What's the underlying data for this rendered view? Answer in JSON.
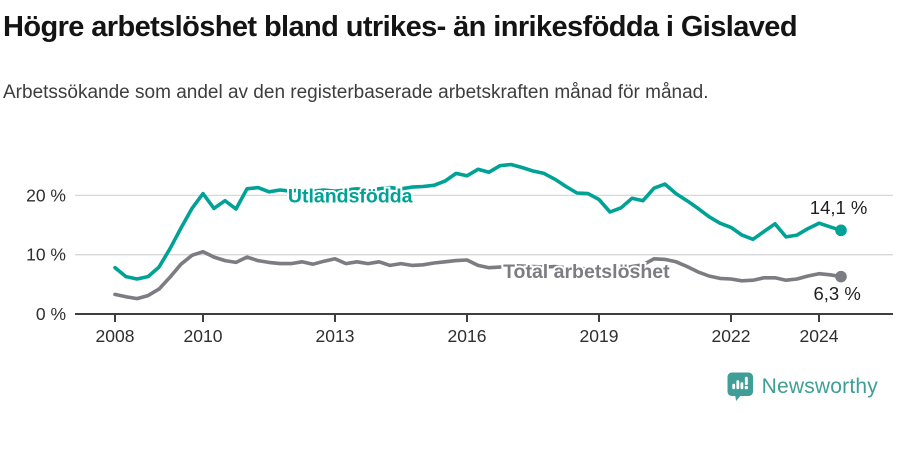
{
  "header": {
    "title": "Högre arbetslöshet bland utrikes- än inrikesfödda i Gislaved",
    "subtitle": "Arbetssökande som andel av den registerbaserade arbetskraften månad för månad."
  },
  "chart_data": {
    "type": "line",
    "unit": "%",
    "grid": "horizontal-only",
    "ylim": [
      0,
      30
    ],
    "xlim": [
      2007.1,
      2025.7
    ],
    "axis_color": "#3f3f3f",
    "grid_color": "#d8d8d8",
    "tick_label_color": "#2f2f2f",
    "value_label_color": "#1f1f1f",
    "y_ticks": [
      {
        "v": 0,
        "label": "0 %"
      },
      {
        "v": 10,
        "label": "10 %"
      },
      {
        "v": 20,
        "label": "20 %"
      }
    ],
    "x_ticks": [
      {
        "v": 2008,
        "label": "2008"
      },
      {
        "v": 2010,
        "label": "2010"
      },
      {
        "v": 2013,
        "label": "2013"
      },
      {
        "v": 2016,
        "label": "2016"
      },
      {
        "v": 2019,
        "label": "2019"
      },
      {
        "v": 2022,
        "label": "2022"
      },
      {
        "v": 2024,
        "label": "2024"
      }
    ],
    "x": [
      2008,
      2008.25,
      2008.5,
      2008.75,
      2009,
      2009.25,
      2009.5,
      2009.75,
      2010,
      2010.25,
      2010.5,
      2010.75,
      2011,
      2011.25,
      2011.5,
      2011.75,
      2012,
      2012.25,
      2012.5,
      2012.75,
      2013,
      2013.25,
      2013.5,
      2013.75,
      2014,
      2014.25,
      2014.5,
      2014.75,
      2015,
      2015.25,
      2015.5,
      2015.75,
      2016,
      2016.25,
      2016.5,
      2016.75,
      2017,
      2017.25,
      2017.5,
      2017.75,
      2018,
      2018.25,
      2018.5,
      2018.75,
      2019,
      2019.25,
      2019.5,
      2019.75,
      2020,
      2020.25,
      2020.5,
      2020.75,
      2021,
      2021.25,
      2021.5,
      2021.75,
      2022,
      2022.25,
      2022.5,
      2022.75,
      2023,
      2023.25,
      2023.5,
      2023.75,
      2024,
      2024.25,
      2024.5
    ],
    "series": [
      {
        "id": "utlandsfodda",
        "name": "Utlandsfödda",
        "color": "#00a296",
        "end_value_label": "14,1 %",
        "inline_label_pos": {
          "x": 2011.93,
          "y": 19.7
        },
        "end_label_pos": {
          "x": 2025.1,
          "y": 17.7
        },
        "values": [
          7.8,
          6.3,
          5.9,
          6.3,
          7.9,
          11.0,
          14.5,
          17.8,
          20.3,
          17.8,
          19.1,
          17.7,
          21.1,
          21.3,
          20.6,
          20.9,
          20.7,
          21.0,
          20.7,
          20.9,
          20.7,
          20.9,
          21.1,
          20.9,
          21.1,
          21.3,
          21.1,
          21.4,
          21.5,
          21.7,
          22.4,
          23.7,
          23.3,
          24.4,
          23.9,
          25.0,
          25.2,
          24.7,
          24.1,
          23.7,
          22.7,
          21.5,
          20.4,
          20.3,
          19.3,
          17.2,
          17.9,
          19.5,
          19.1,
          21.2,
          21.9,
          20.3,
          19.1,
          17.8,
          16.4,
          15.3,
          14.6,
          13.3,
          12.6,
          13.9,
          15.2,
          13.0,
          13.3,
          14.4,
          15.3,
          14.7,
          14.1
        ]
      },
      {
        "id": "total-arbetsloshet",
        "name": "Total arbetslöshet",
        "color": "#7c7c83",
        "end_value_label": "6,3 %",
        "inline_label_pos": {
          "x": 2016.82,
          "y": 6.9
        },
        "end_label_pos": {
          "x": 2024.95,
          "y": 3.2
        },
        "values": [
          3.3,
          2.9,
          2.6,
          3.1,
          4.2,
          6.2,
          8.4,
          9.9,
          10.5,
          9.6,
          9.0,
          8.7,
          9.6,
          9.0,
          8.7,
          8.5,
          8.5,
          8.8,
          8.4,
          8.9,
          9.3,
          8.5,
          8.8,
          8.5,
          8.8,
          8.2,
          8.5,
          8.2,
          8.3,
          8.6,
          8.8,
          9.0,
          9.1,
          8.2,
          7.8,
          7.9,
          8.2,
          8.1,
          8.0,
          7.9,
          8.0,
          7.8,
          7.7,
          7.6,
          7.8,
          7.5,
          7.7,
          8.0,
          8.3,
          9.3,
          9.2,
          8.8,
          8.0,
          7.1,
          6.4,
          6.0,
          5.9,
          5.6,
          5.7,
          6.1,
          6.1,
          5.7,
          5.9,
          6.4,
          6.8,
          6.6,
          6.3
        ]
      }
    ]
  },
  "footer": {
    "brand": "Newsworthy",
    "brand_color": "#3f9e97"
  }
}
